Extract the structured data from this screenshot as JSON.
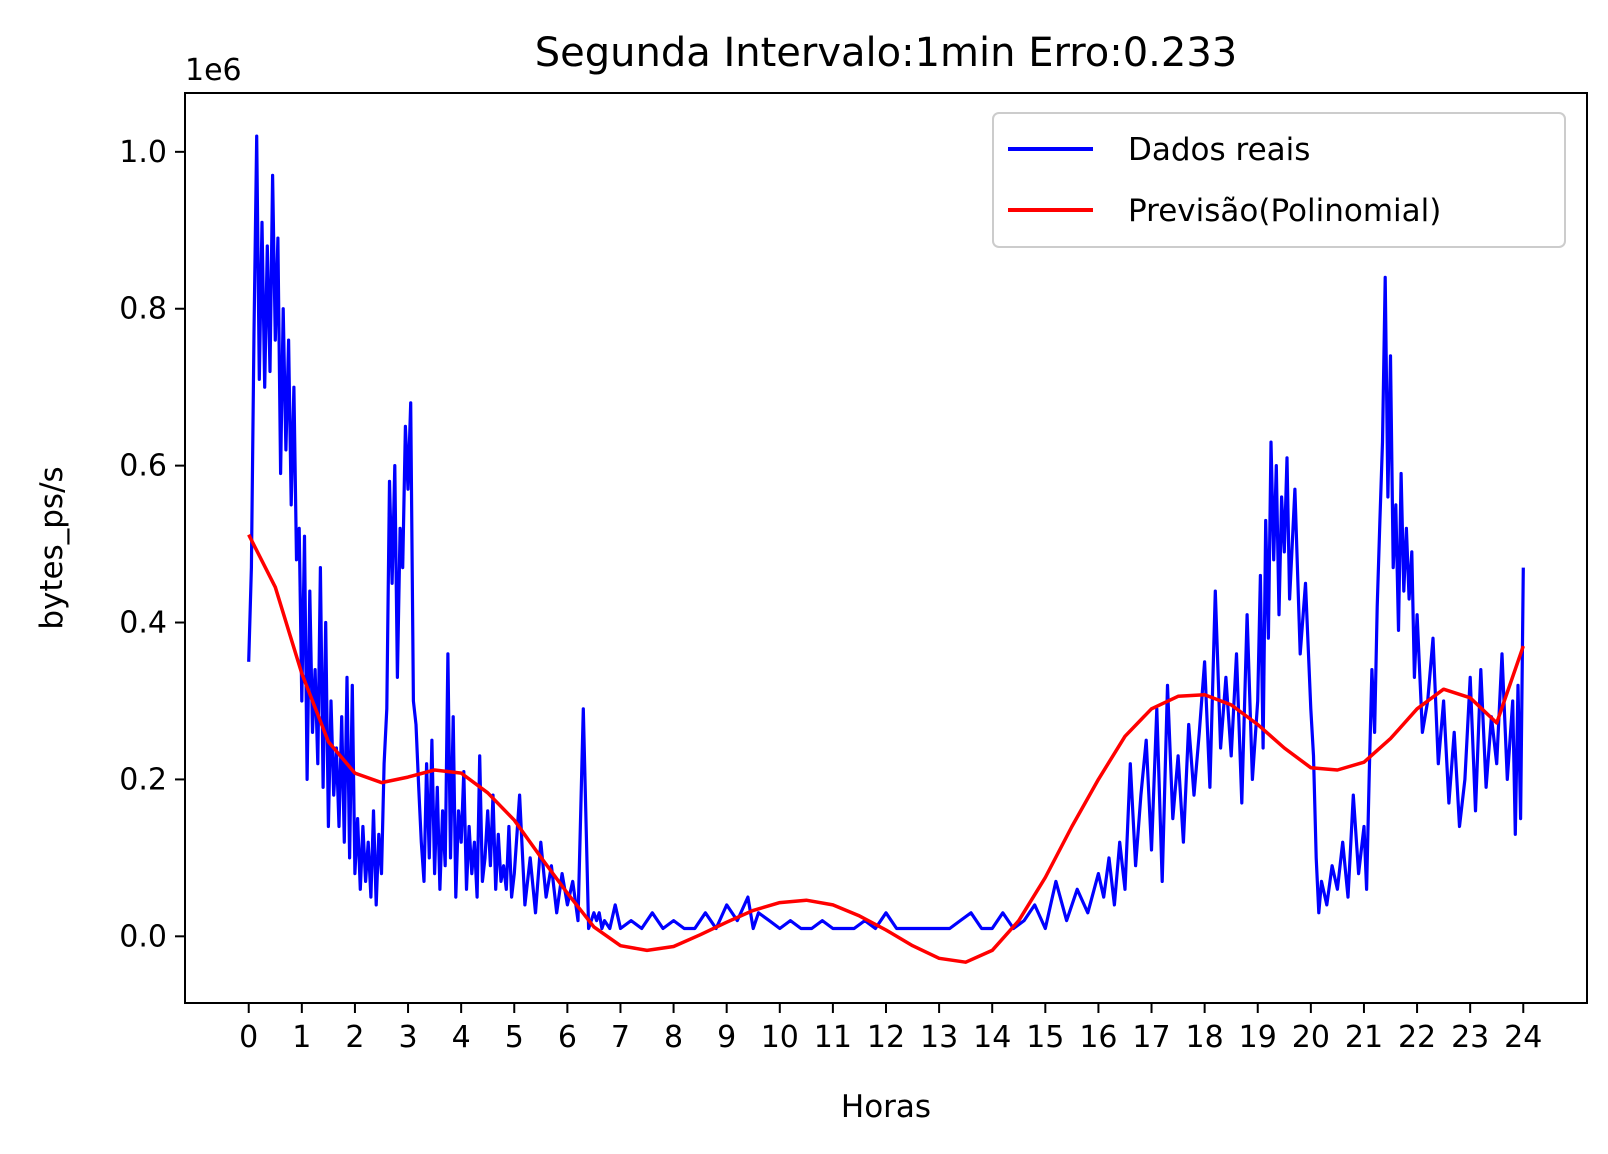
{
  "chart_data": {
    "type": "line",
    "title": "Segunda Intervalo:1min Erro:0.233",
    "xlabel": "Horas",
    "ylabel": "bytes_ps/s",
    "y_offset_label": "1e6",
    "xlim": [
      -1.2,
      25.2
    ],
    "ylim": [
      -0.085,
      1.075
    ],
    "x_ticks": [
      0,
      1,
      2,
      3,
      4,
      5,
      6,
      7,
      8,
      9,
      10,
      11,
      12,
      13,
      14,
      15,
      16,
      17,
      18,
      19,
      20,
      21,
      22,
      23,
      24
    ],
    "x_tick_labels": [
      "0",
      "1",
      "2",
      "3",
      "4",
      "5",
      "6",
      "7",
      "8",
      "9",
      "10",
      "11",
      "12",
      "13",
      "14",
      "15",
      "16",
      "17",
      "18",
      "19",
      "20",
      "21",
      "22",
      "23",
      "24"
    ],
    "y_ticks": [
      0.0,
      0.2,
      0.4,
      0.6,
      0.8,
      1.0
    ],
    "y_tick_labels": [
      "0.0",
      "0.2",
      "0.4",
      "0.6",
      "0.8",
      "1.0"
    ],
    "grid": false,
    "legend_position": "top-right",
    "series": [
      {
        "name": "Dados reais",
        "color": "#0000ff",
        "x": [
          0,
          0.05,
          0.1,
          0.15,
          0.2,
          0.25,
          0.3,
          0.35,
          0.4,
          0.45,
          0.5,
          0.55,
          0.6,
          0.65,
          0.7,
          0.75,
          0.8,
          0.85,
          0.9,
          0.95,
          1.0,
          1.05,
          1.1,
          1.15,
          1.2,
          1.25,
          1.3,
          1.35,
          1.4,
          1.45,
          1.5,
          1.55,
          1.6,
          1.65,
          1.7,
          1.75,
          1.8,
          1.85,
          1.9,
          1.95,
          2.0,
          2.05,
          2.1,
          2.15,
          2.2,
          2.25,
          2.3,
          2.35,
          2.4,
          2.45,
          2.5,
          2.55,
          2.6,
          2.65,
          2.7,
          2.75,
          2.8,
          2.85,
          2.9,
          2.95,
          3.0,
          3.05,
          3.1,
          3.15,
          3.2,
          3.25,
          3.3,
          3.35,
          3.4,
          3.45,
          3.5,
          3.55,
          3.6,
          3.65,
          3.7,
          3.75,
          3.8,
          3.85,
          3.9,
          3.95,
          4.0,
          4.05,
          4.1,
          4.15,
          4.2,
          4.25,
          4.3,
          4.35,
          4.4,
          4.45,
          4.5,
          4.55,
          4.6,
          4.65,
          4.7,
          4.75,
          4.8,
          4.85,
          4.9,
          4.95,
          5.0,
          5.1,
          5.2,
          5.3,
          5.4,
          5.5,
          5.6,
          5.7,
          5.8,
          5.9,
          6.0,
          6.1,
          6.2,
          6.3,
          6.4,
          6.5,
          6.55,
          6.6,
          6.65,
          6.7,
          6.8,
          6.9,
          7.0,
          7.2,
          7.4,
          7.6,
          7.8,
          8.0,
          8.2,
          8.4,
          8.6,
          8.8,
          9.0,
          9.2,
          9.4,
          9.5,
          9.6,
          9.8,
          10.0,
          10.2,
          10.4,
          10.6,
          10.8,
          11.0,
          11.2,
          11.4,
          11.6,
          11.8,
          12.0,
          12.2,
          12.4,
          12.6,
          12.8,
          13.0,
          13.2,
          13.4,
          13.6,
          13.8,
          14.0,
          14.2,
          14.4,
          14.6,
          14.8,
          15.0,
          15.2,
          15.4,
          15.6,
          15.8,
          16.0,
          16.1,
          16.2,
          16.3,
          16.4,
          16.5,
          16.6,
          16.7,
          16.8,
          16.9,
          17.0,
          17.1,
          17.2,
          17.3,
          17.4,
          17.5,
          17.6,
          17.7,
          17.8,
          17.9,
          18.0,
          18.1,
          18.2,
          18.3,
          18.4,
          18.5,
          18.6,
          18.7,
          18.8,
          18.9,
          19.0,
          19.05,
          19.1,
          19.15,
          19.2,
          19.25,
          19.3,
          19.35,
          19.4,
          19.45,
          19.5,
          19.55,
          19.6,
          19.7,
          19.8,
          19.9,
          20.0,
          20.05,
          20.1,
          20.15,
          20.2,
          20.3,
          20.4,
          20.5,
          20.6,
          20.7,
          20.8,
          20.9,
          21.0,
          21.05,
          21.1,
          21.15,
          21.2,
          21.25,
          21.3,
          21.35,
          21.4,
          21.45,
          21.5,
          21.55,
          21.6,
          21.65,
          21.7,
          21.75,
          21.8,
          21.85,
          21.9,
          21.95,
          22.0,
          22.1,
          22.2,
          22.3,
          22.4,
          22.5,
          22.6,
          22.7,
          22.8,
          22.9,
          23.0,
          23.1,
          23.2,
          23.3,
          23.4,
          23.5,
          23.6,
          23.7,
          23.8,
          23.85,
          23.9,
          23.95,
          24.0
        ],
        "y": [
          0.35,
          0.47,
          0.77,
          1.02,
          0.71,
          0.91,
          0.7,
          0.88,
          0.72,
          0.97,
          0.76,
          0.89,
          0.59,
          0.8,
          0.62,
          0.76,
          0.55,
          0.7,
          0.48,
          0.52,
          0.3,
          0.51,
          0.2,
          0.44,
          0.26,
          0.34,
          0.22,
          0.47,
          0.19,
          0.4,
          0.14,
          0.3,
          0.18,
          0.24,
          0.14,
          0.28,
          0.12,
          0.33,
          0.1,
          0.32,
          0.08,
          0.15,
          0.06,
          0.14,
          0.07,
          0.12,
          0.05,
          0.16,
          0.04,
          0.13,
          0.08,
          0.22,
          0.29,
          0.58,
          0.45,
          0.6,
          0.33,
          0.52,
          0.47,
          0.65,
          0.57,
          0.68,
          0.3,
          0.27,
          0.19,
          0.12,
          0.07,
          0.22,
          0.1,
          0.25,
          0.08,
          0.19,
          0.06,
          0.16,
          0.09,
          0.36,
          0.1,
          0.28,
          0.05,
          0.16,
          0.12,
          0.21,
          0.06,
          0.14,
          0.08,
          0.12,
          0.05,
          0.23,
          0.07,
          0.1,
          0.16,
          0.09,
          0.18,
          0.06,
          0.13,
          0.07,
          0.09,
          0.06,
          0.14,
          0.05,
          0.08,
          0.18,
          0.04,
          0.1,
          0.03,
          0.12,
          0.05,
          0.09,
          0.03,
          0.08,
          0.04,
          0.07,
          0.02,
          0.29,
          0.01,
          0.03,
          0.02,
          0.03,
          0.01,
          0.02,
          0.01,
          0.04,
          0.01,
          0.02,
          0.01,
          0.03,
          0.01,
          0.02,
          0.01,
          0.01,
          0.03,
          0.01,
          0.04,
          0.02,
          0.05,
          0.01,
          0.03,
          0.02,
          0.01,
          0.02,
          0.01,
          0.01,
          0.02,
          0.01,
          0.01,
          0.01,
          0.02,
          0.01,
          0.03,
          0.01,
          0.01,
          0.01,
          0.01,
          0.01,
          0.01,
          0.02,
          0.03,
          0.01,
          0.01,
          0.03,
          0.01,
          0.02,
          0.04,
          0.01,
          0.07,
          0.02,
          0.06,
          0.03,
          0.08,
          0.05,
          0.1,
          0.04,
          0.12,
          0.06,
          0.22,
          0.09,
          0.18,
          0.25,
          0.11,
          0.29,
          0.07,
          0.32,
          0.15,
          0.23,
          0.12,
          0.27,
          0.18,
          0.26,
          0.35,
          0.19,
          0.44,
          0.24,
          0.33,
          0.23,
          0.36,
          0.17,
          0.41,
          0.2,
          0.3,
          0.46,
          0.24,
          0.53,
          0.38,
          0.63,
          0.48,
          0.6,
          0.41,
          0.56,
          0.49,
          0.61,
          0.43,
          0.57,
          0.36,
          0.45,
          0.29,
          0.23,
          0.1,
          0.03,
          0.07,
          0.04,
          0.09,
          0.06,
          0.12,
          0.05,
          0.18,
          0.08,
          0.14,
          0.06,
          0.21,
          0.34,
          0.26,
          0.42,
          0.53,
          0.63,
          0.84,
          0.56,
          0.74,
          0.47,
          0.55,
          0.39,
          0.59,
          0.44,
          0.52,
          0.43,
          0.49,
          0.33,
          0.41,
          0.26,
          0.3,
          0.38,
          0.22,
          0.3,
          0.17,
          0.26,
          0.14,
          0.2,
          0.33,
          0.16,
          0.34,
          0.19,
          0.28,
          0.22,
          0.36,
          0.2,
          0.3,
          0.13,
          0.32,
          0.15,
          0.47
        ]
      },
      {
        "name": "Previsão(Polinomial)",
        "color": "#ff0000",
        "x": [
          0,
          0.5,
          1,
          1.5,
          2,
          2.5,
          3,
          3.5,
          4,
          4.5,
          5,
          5.5,
          6,
          6.5,
          7,
          7.5,
          8,
          8.5,
          9,
          9.5,
          10,
          10.5,
          11,
          11.5,
          12,
          12.5,
          13,
          13.5,
          14,
          14.5,
          15,
          15.5,
          16,
          16.5,
          17,
          17.5,
          18,
          18.5,
          19,
          19.5,
          20,
          20.5,
          21,
          21.5,
          22,
          22.5,
          23,
          23.5,
          24
        ],
        "y": [
          0.512,
          0.445,
          0.335,
          0.248,
          0.208,
          0.196,
          0.203,
          0.212,
          0.208,
          0.183,
          0.148,
          0.101,
          0.055,
          0.012,
          -0.012,
          -0.018,
          -0.013,
          0.002,
          0.018,
          0.033,
          0.043,
          0.046,
          0.04,
          0.026,
          0.008,
          -0.012,
          -0.028,
          -0.033,
          -0.018,
          0.02,
          0.075,
          0.14,
          0.2,
          0.255,
          0.29,
          0.306,
          0.308,
          0.295,
          0.27,
          0.24,
          0.215,
          0.212,
          0.222,
          0.252,
          0.29,
          0.315,
          0.304,
          0.272,
          0.37
        ]
      }
    ]
  }
}
